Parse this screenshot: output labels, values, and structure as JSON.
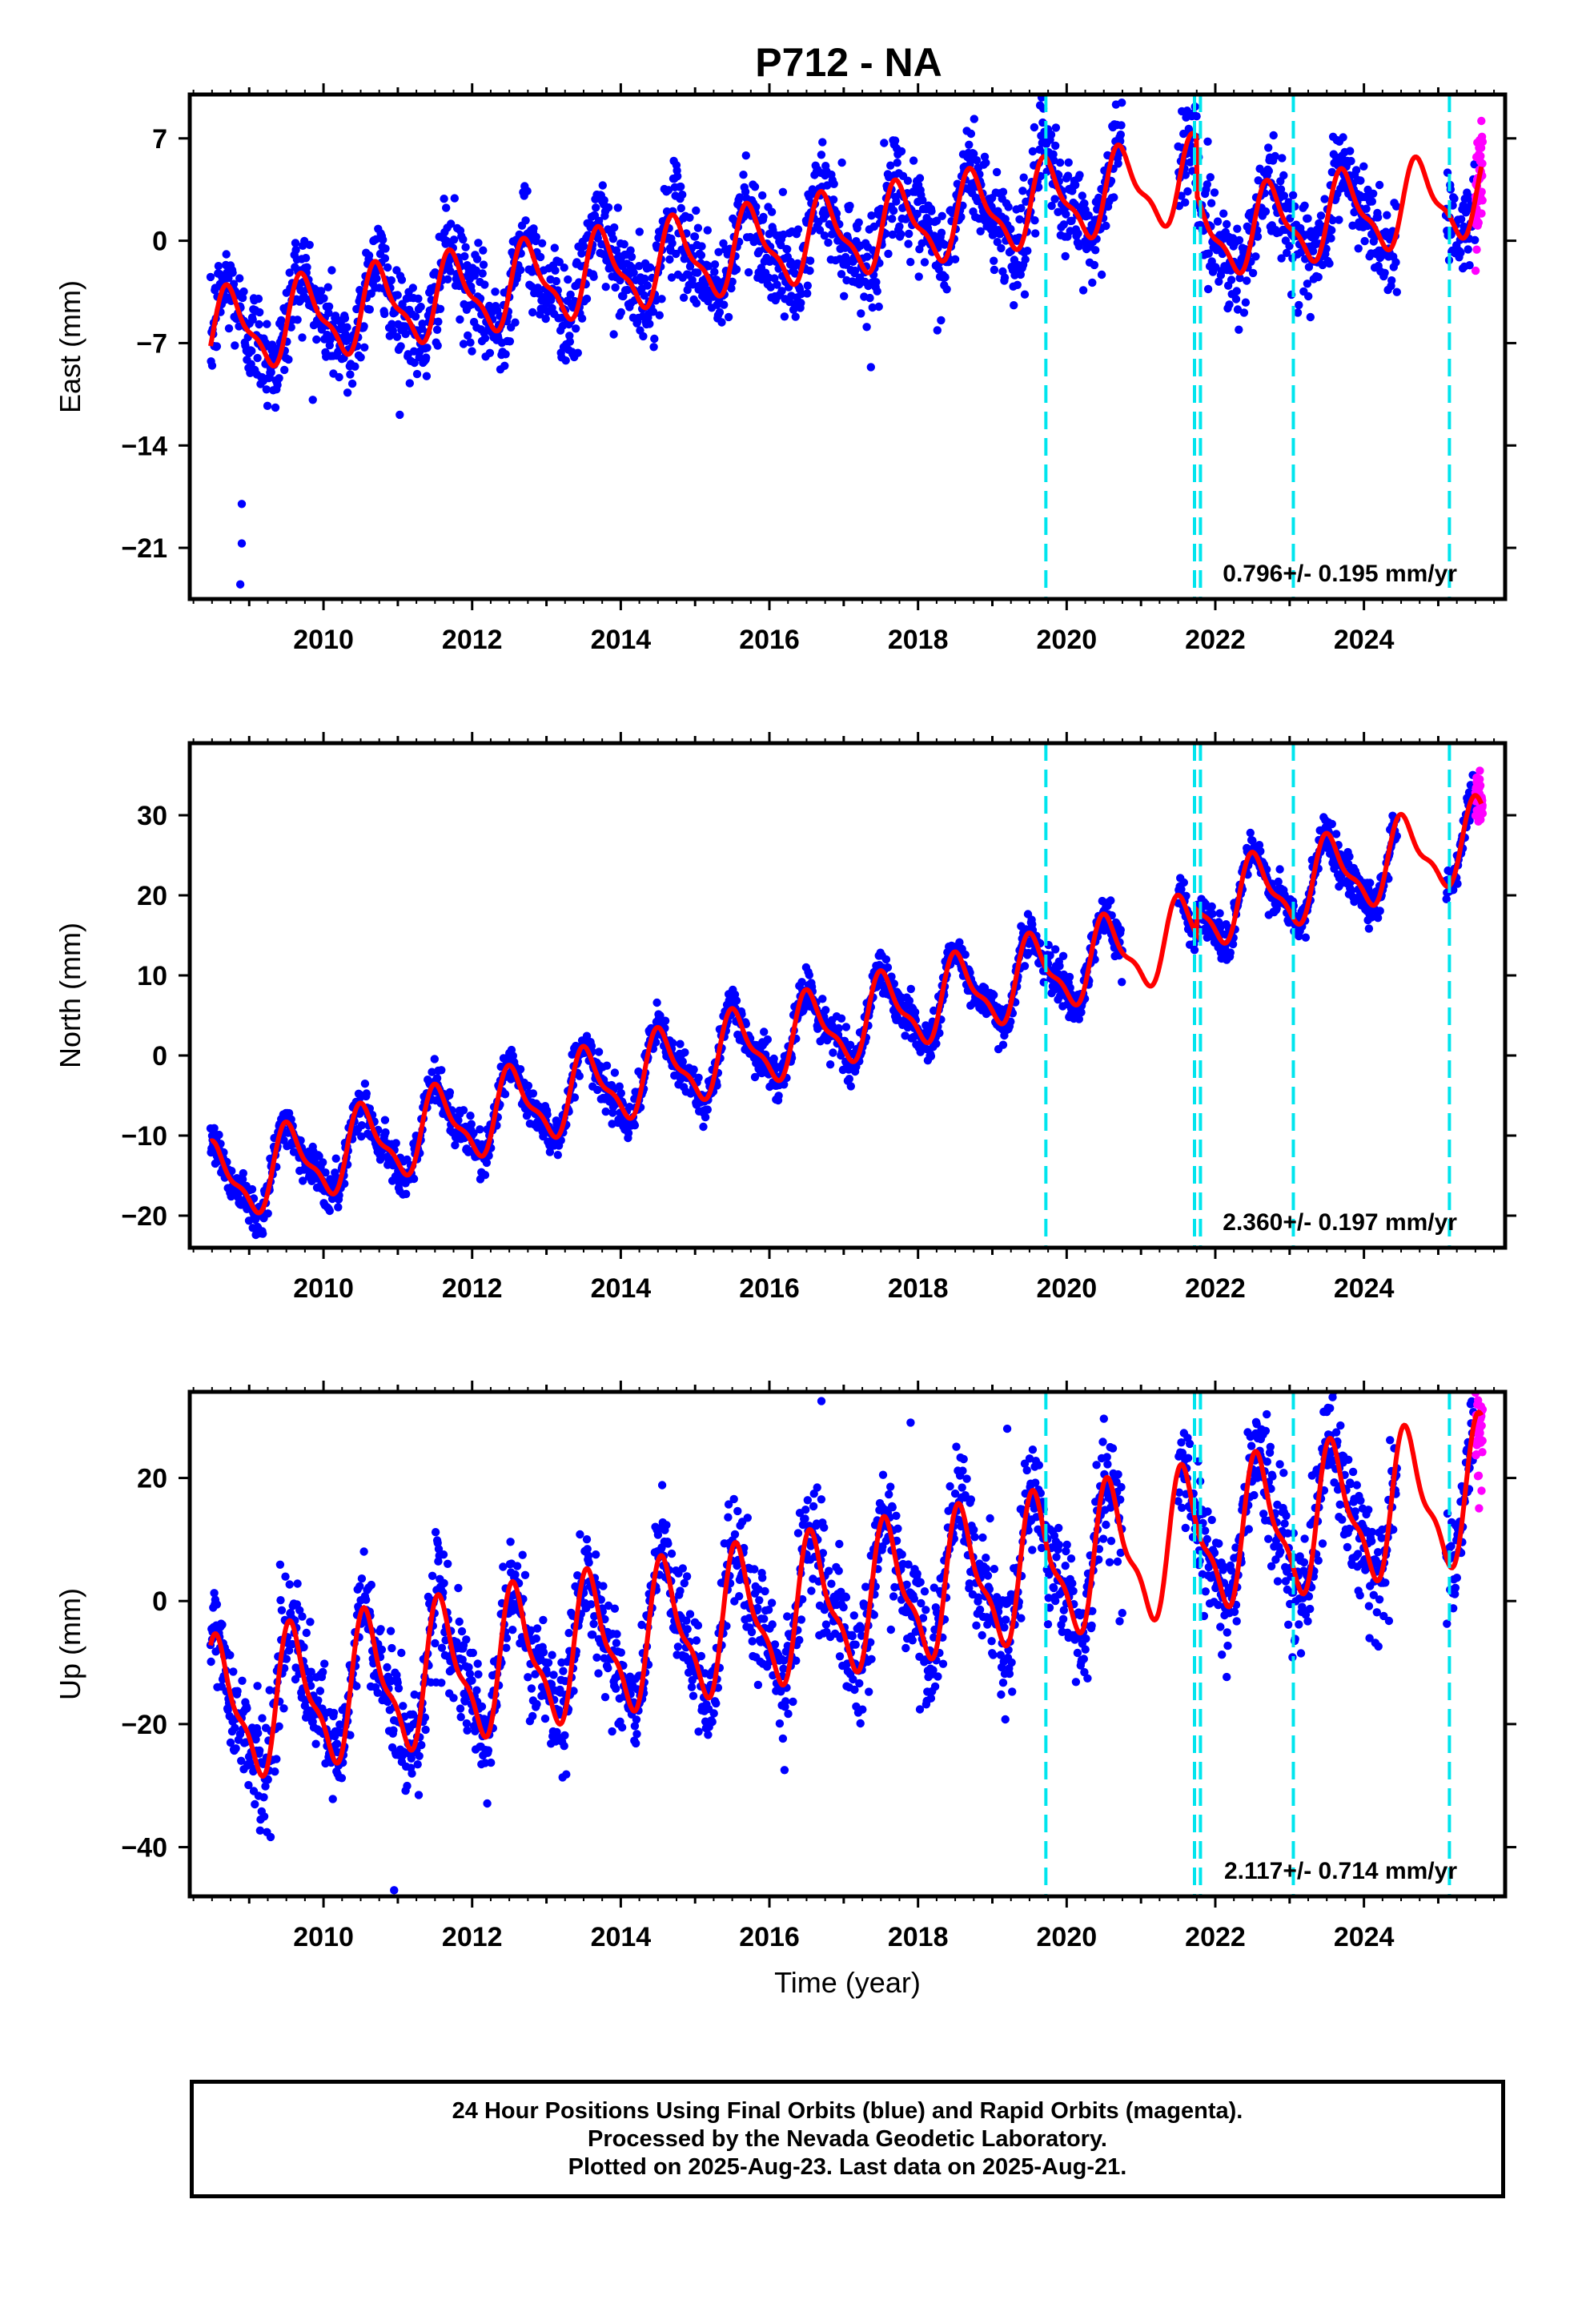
{
  "title": "P712 - NA",
  "footer": {
    "line1": "24 Hour Positions Using Final Orbits (blue) and Rapid Orbits (magenta).",
    "line2": "Processed by the Nevada Geodetic Laboratory.",
    "line3": "Plotted on 2025-Aug-23. Last data on 2025-Aug-21."
  },
  "colors": {
    "final_orbits": "#0000ff",
    "rapid_orbits": "#ff00ff",
    "model_fit": "#ff0000",
    "event_lines": "#00e5ee"
  },
  "chart_data": [
    {
      "type": "scatter",
      "ylabel": "East (mm)",
      "xlabel": "",
      "xlim": [
        2008.2,
        2025.9
      ],
      "ylim": [
        -24.5,
        10
      ],
      "xticks": [
        2010,
        2012,
        2014,
        2016,
        2018,
        2020,
        2022,
        2024
      ],
      "yticks": [
        -21,
        -14,
        -7,
        0,
        7
      ],
      "ytick_labels": [
        "−21",
        "−14",
        "−7",
        "0",
        "7"
      ],
      "rate_label": "0.796+/- 0.195 mm/yr",
      "trend": {
        "rate": 0.796,
        "y_at_2016": -0.4
      },
      "seasonal": {
        "amplitude": 2.6,
        "peak": 0.75
      },
      "scatter_sd": 1.7,
      "gaps": [
        [
          2020.75,
          2021.5
        ],
        [
          2024.45,
          2025.1
        ]
      ],
      "outliers": [
        [
          2008.9,
          -18.0
        ],
        [
          2008.9,
          -20.7
        ],
        [
          2008.88,
          -23.5
        ]
      ],
      "steps": [
        [
          2021.75,
          -4.0
        ]
      ],
      "event_lines": [
        2019.72,
        2021.72,
        2021.8,
        2023.05,
        2025.15
      ]
    },
    {
      "type": "scatter",
      "ylabel": "North (mm)",
      "xlabel": "",
      "xlim": [
        2008.2,
        2025.9
      ],
      "ylim": [
        -24,
        39
      ],
      "xticks": [
        2010,
        2012,
        2014,
        2016,
        2018,
        2020,
        2022,
        2024
      ],
      "yticks": [
        -20,
        -10,
        0,
        10,
        20,
        30
      ],
      "ytick_labels": [
        "−20",
        "−10",
        "0",
        "10",
        "20",
        "30"
      ],
      "rate_label": "2.360+/- 0.197 mm/yr",
      "trend": {
        "rate": 2.36,
        "y_at_2016": 1.5
      },
      "seasonal": {
        "amplitude": 4.5,
        "peak": 0.55
      },
      "scatter_sd": 1.3,
      "gaps": [
        [
          2020.75,
          2021.5
        ],
        [
          2024.45,
          2025.1
        ]
      ],
      "outliers": [],
      "steps": [
        [
          2021.75,
          3.0
        ]
      ],
      "event_lines": [
        2019.72,
        2021.72,
        2021.8,
        2023.05,
        2025.15
      ]
    },
    {
      "type": "scatter",
      "ylabel": "Up (mm)",
      "xlabel": "Time (year)",
      "xlim": [
        2008.2,
        2025.9
      ],
      "ylim": [
        -48,
        34
      ],
      "xticks": [
        2010,
        2012,
        2014,
        2016,
        2018,
        2020,
        2022,
        2024
      ],
      "yticks": [
        -40,
        -20,
        0,
        20
      ],
      "ytick_labels": [
        "−40",
        "−20",
        "0",
        "20"
      ],
      "rate_label": "2.117+/- 0.714 mm/yr",
      "trend": {
        "rate": 2.117,
        "y_at_2016": -2.5
      },
      "seasonal": {
        "amplitude": 10.5,
        "peak": 0.6
      },
      "scatter_sd": 4.5,
      "gaps": [
        [
          2020.75,
          2021.5
        ],
        [
          2024.45,
          2025.1
        ]
      ],
      "outliers": [
        [
          2010.95,
          -47.0
        ],
        [
          2016.7,
          32.5
        ],
        [
          2017.9,
          29.0
        ],
        [
          2019.2,
          28.0
        ]
      ],
      "steps": [],
      "event_lines": [
        2019.72,
        2021.72,
        2021.8,
        2023.05,
        2025.15
      ]
    }
  ]
}
